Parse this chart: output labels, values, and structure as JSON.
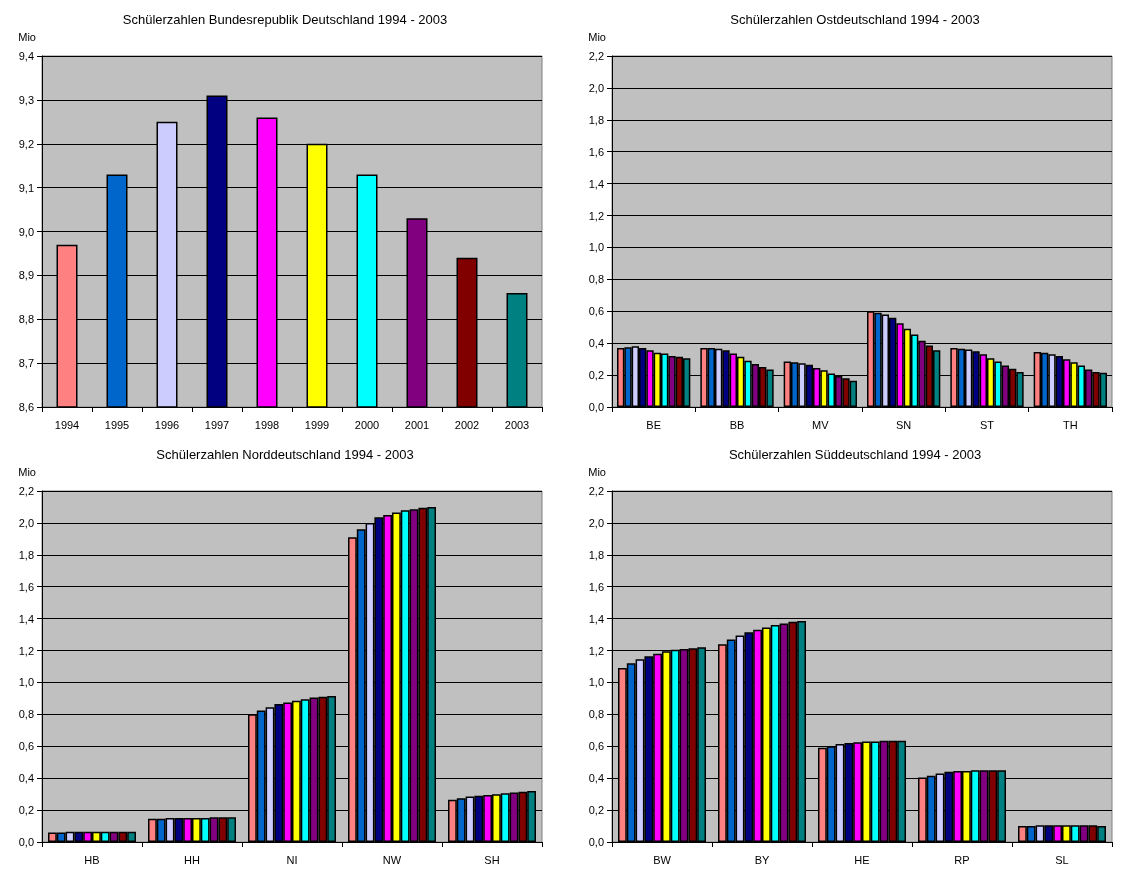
{
  "chart_data": [
    {
      "type": "bar",
      "title": "Schülerzahlen Bundesrepublik Deutschland 1994 - 2003",
      "ylabel": "Mio",
      "categories": [
        "1994",
        "1995",
        "1996",
        "1997",
        "1998",
        "1999",
        "2000",
        "2001",
        "2002",
        "2003"
      ],
      "values": [
        8.97,
        9.13,
        9.25,
        9.31,
        9.26,
        9.2,
        9.13,
        9.03,
        8.94,
        8.86
      ],
      "colors": [
        "#ff8080",
        "#0066cc",
        "#ccccff",
        "#000080",
        "#ff00ff",
        "#ffff00",
        "#00ffff",
        "#800080",
        "#800000",
        "#008080"
      ],
      "ylim": [
        8.6,
        9.4
      ],
      "yticks": [
        {
          "value": 8.6,
          "label": "8,6"
        },
        {
          "value": 8.7,
          "label": "8,7"
        },
        {
          "value": 8.8,
          "label": "8,8"
        },
        {
          "value": 8.9,
          "label": "8,9"
        },
        {
          "value": 9.0,
          "label": "9,0"
        },
        {
          "value": 9.1,
          "label": "9,1"
        },
        {
          "value": 9.2,
          "label": "9,2"
        },
        {
          "value": 9.3,
          "label": "9,3"
        },
        {
          "value": 9.4,
          "label": "9,4"
        }
      ],
      "grid": "y"
    },
    {
      "type": "bar",
      "title": "Schülerzahlen Ostdeutschland 1994 - 2003",
      "ylabel": "Mio",
      "categories": [
        "BE",
        "BB",
        "MV",
        "SN",
        "ST",
        "TH"
      ],
      "series": [
        {
          "color": "#ff8080",
          "values": [
            0.37,
            0.37,
            0.285,
            0.6,
            0.37,
            0.345
          ]
        },
        {
          "color": "#0066cc",
          "values": [
            0.375,
            0.37,
            0.28,
            0.59,
            0.365,
            0.34
          ]
        },
        {
          "color": "#ccccff",
          "values": [
            0.38,
            0.365,
            0.275,
            0.58,
            0.36,
            0.33
          ]
        },
        {
          "color": "#000080",
          "values": [
            0.37,
            0.355,
            0.265,
            0.56,
            0.35,
            0.32
          ]
        },
        {
          "color": "#ff00ff",
          "values": [
            0.355,
            0.335,
            0.245,
            0.525,
            0.33,
            0.3
          ]
        },
        {
          "color": "#ffff00",
          "values": [
            0.34,
            0.315,
            0.23,
            0.49,
            0.305,
            0.28
          ]
        },
        {
          "color": "#00ffff",
          "values": [
            0.335,
            0.29,
            0.21,
            0.455,
            0.285,
            0.26
          ]
        },
        {
          "color": "#800080",
          "values": [
            0.32,
            0.27,
            0.195,
            0.415,
            0.26,
            0.235
          ]
        },
        {
          "color": "#800000",
          "values": [
            0.315,
            0.25,
            0.18,
            0.385,
            0.24,
            0.22
          ]
        },
        {
          "color": "#008080",
          "values": [
            0.305,
            0.235,
            0.165,
            0.355,
            0.22,
            0.215
          ]
        }
      ],
      "ylim": [
        0,
        2.2
      ],
      "yticks": [
        {
          "value": 0,
          "label": "0,0"
        },
        {
          "value": 0.2,
          "label": "0,2"
        },
        {
          "value": 0.4,
          "label": "0,4"
        },
        {
          "value": 0.6,
          "label": "0,6"
        },
        {
          "value": 0.8,
          "label": "0,8"
        },
        {
          "value": 1.0,
          "label": "1,0"
        },
        {
          "value": 1.2,
          "label": "1,2"
        },
        {
          "value": 1.4,
          "label": "1,4"
        },
        {
          "value": 1.6,
          "label": "1,6"
        },
        {
          "value": 1.8,
          "label": "1,8"
        },
        {
          "value": 2.0,
          "label": "2,0"
        },
        {
          "value": 2.2,
          "label": "2,2"
        }
      ],
      "grid": "y"
    },
    {
      "type": "bar",
      "title": "Schülerzahlen Norddeutschland 1994 - 2003",
      "ylabel": "Mio",
      "categories": [
        "HB",
        "HH",
        "NI",
        "NW",
        "SH"
      ],
      "series": [
        {
          "color": "#ff8080",
          "values": [
            0.06,
            0.145,
            0.8,
            1.91,
            0.265
          ]
        },
        {
          "color": "#0066cc",
          "values": [
            0.06,
            0.145,
            0.825,
            1.96,
            0.275
          ]
        },
        {
          "color": "#ccccff",
          "values": [
            0.065,
            0.15,
            0.845,
            2.0,
            0.285
          ]
        },
        {
          "color": "#000080",
          "values": [
            0.065,
            0.15,
            0.865,
            2.035,
            0.29
          ]
        },
        {
          "color": "#ff00ff",
          "values": [
            0.065,
            0.15,
            0.875,
            2.05,
            0.295
          ]
        },
        {
          "color": "#ffff00",
          "values": [
            0.065,
            0.15,
            0.885,
            2.065,
            0.3
          ]
        },
        {
          "color": "#00ffff",
          "values": [
            0.065,
            0.15,
            0.895,
            2.08,
            0.305
          ]
        },
        {
          "color": "#800080",
          "values": [
            0.065,
            0.155,
            0.905,
            2.085,
            0.31
          ]
        },
        {
          "color": "#800000",
          "values": [
            0.065,
            0.155,
            0.91,
            2.095,
            0.315
          ]
        },
        {
          "color": "#008080",
          "values": [
            0.065,
            0.155,
            0.915,
            2.1,
            0.32
          ]
        }
      ],
      "ylim": [
        0,
        2.2
      ],
      "yticks": [
        {
          "value": 0,
          "label": "0,0"
        },
        {
          "value": 0.2,
          "label": "0,2"
        },
        {
          "value": 0.4,
          "label": "0,4"
        },
        {
          "value": 0.6,
          "label": "0,6"
        },
        {
          "value": 0.8,
          "label": "0,8"
        },
        {
          "value": 1.0,
          "label": "1,0"
        },
        {
          "value": 1.2,
          "label": "1,2"
        },
        {
          "value": 1.4,
          "label": "1,4"
        },
        {
          "value": 1.6,
          "label": "1,6"
        },
        {
          "value": 1.8,
          "label": "1,8"
        },
        {
          "value": 2.0,
          "label": "2,0"
        },
        {
          "value": 2.2,
          "label": "2,2"
        }
      ],
      "grid": "y"
    },
    {
      "type": "bar",
      "title": "Schülerzahlen Süddeutschland 1994 - 2003",
      "ylabel": "Mio",
      "categories": [
        "BW",
        "BY",
        "HE",
        "RP",
        "SL"
      ],
      "series": [
        {
          "color": "#ff8080",
          "values": [
            1.09,
            1.24,
            0.59,
            0.405,
            0.1
          ]
        },
        {
          "color": "#0066cc",
          "values": [
            1.12,
            1.27,
            0.6,
            0.415,
            0.1
          ]
        },
        {
          "color": "#ccccff",
          "values": [
            1.145,
            1.295,
            0.615,
            0.43,
            0.105
          ]
        },
        {
          "color": "#000080",
          "values": [
            1.165,
            1.315,
            0.62,
            0.44,
            0.105
          ]
        },
        {
          "color": "#ff00ff",
          "values": [
            1.18,
            1.33,
            0.625,
            0.445,
            0.105
          ]
        },
        {
          "color": "#ffff00",
          "values": [
            1.195,
            1.345,
            0.63,
            0.445,
            0.105
          ]
        },
        {
          "color": "#00ffff",
          "values": [
            1.205,
            1.36,
            0.63,
            0.45,
            0.105
          ]
        },
        {
          "color": "#800080",
          "values": [
            1.21,
            1.37,
            0.635,
            0.45,
            0.105
          ]
        },
        {
          "color": "#800000",
          "values": [
            1.215,
            1.38,
            0.635,
            0.45,
            0.105
          ]
        },
        {
          "color": "#008080",
          "values": [
            1.22,
            1.385,
            0.635,
            0.45,
            0.1
          ]
        }
      ],
      "ylim": [
        0,
        2.2
      ],
      "yticks": [
        {
          "value": 0,
          "label": "0,0"
        },
        {
          "value": 0.2,
          "label": "0,2"
        },
        {
          "value": 0.4,
          "label": "0,4"
        },
        {
          "value": 0.6,
          "label": "0,6"
        },
        {
          "value": 0.8,
          "label": "0,8"
        },
        {
          "value": 1.0,
          "label": "1,0"
        },
        {
          "value": 1.2,
          "label": "1,2"
        },
        {
          "value": 1.4,
          "label": "1,4"
        },
        {
          "value": 1.6,
          "label": "1,6"
        },
        {
          "value": 1.8,
          "label": "1,8"
        },
        {
          "value": 2.0,
          "label": "2,0"
        },
        {
          "value": 2.2,
          "label": "2,2"
        }
      ],
      "grid": "y"
    }
  ]
}
